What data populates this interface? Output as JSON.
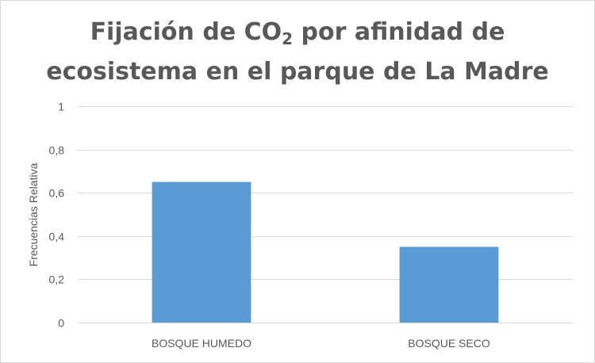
{
  "chart_data": {
    "type": "bar",
    "title_line1_prefix": "Fijación de CO",
    "title_line1_subscript": "2",
    "title_line1_suffix": " por afinidad de",
    "title_line2": "ecosistema en el parque de La Madre",
    "ylabel": "Frecuencias Relativa",
    "xlabel": "",
    "categories": [
      "BOSQUE HUMEDO",
      "BOSQUE SECO"
    ],
    "values": [
      0.65,
      0.35
    ],
    "ylim": [
      0,
      1
    ],
    "yticks": [
      0,
      0.2,
      0.4,
      0.6,
      0.8,
      1
    ],
    "ytick_labels": [
      "0",
      "0,2",
      "0,4",
      "0,6",
      "0,8",
      "1"
    ],
    "grid": true,
    "bar_color": "#5b9bd5",
    "legend": "none"
  }
}
